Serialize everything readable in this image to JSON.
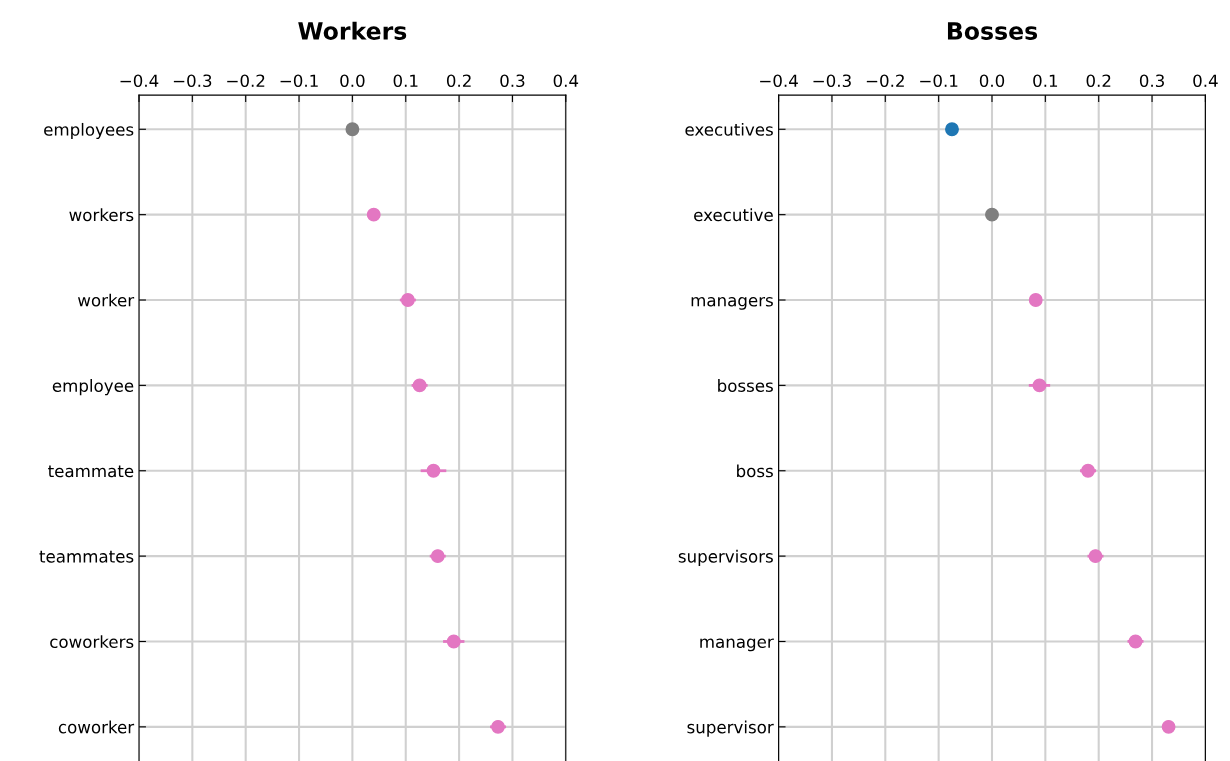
{
  "chart_data": [
    {
      "type": "scatter",
      "title": "Workers",
      "orientation": "horizontal",
      "categories": [
        "employees",
        "workers",
        "worker",
        "employee",
        "teammate",
        "teammates",
        "coworkers",
        "coworker"
      ],
      "values": [
        0.0,
        0.04,
        0.104,
        0.126,
        0.152,
        0.16,
        0.19,
        0.273
      ],
      "errors": [
        0.005,
        0.008,
        0.015,
        0.015,
        0.024,
        0.015,
        0.02,
        0.015
      ],
      "colors": [
        "#7f7f7f",
        "#e377c2",
        "#e377c2",
        "#e377c2",
        "#e377c2",
        "#e377c2",
        "#e377c2",
        "#e377c2"
      ],
      "xlim": [
        -0.4,
        0.4
      ],
      "xticks": [
        {
          "value": -0.4,
          "label": "−0.4"
        },
        {
          "value": -0.3,
          "label": "−0.3"
        },
        {
          "value": -0.2,
          "label": "−0.2"
        },
        {
          "value": -0.1,
          "label": "−0.1"
        },
        {
          "value": 0,
          "label": "0.0"
        },
        0.1,
        0.2,
        0.3,
        0.4
      ],
      "grid": true,
      "marker": "circle"
    },
    {
      "type": "scatter",
      "title": "Bosses",
      "orientation": "horizontal",
      "categories": [
        "executives",
        "executive",
        "managers",
        "bosses",
        "boss",
        "supervisors",
        "manager",
        "supervisor"
      ],
      "values": [
        -0.075,
        0.0,
        0.082,
        0.089,
        0.18,
        0.194,
        0.269,
        0.331
      ],
      "errors": [
        0.01,
        0.01,
        0.005,
        0.02,
        0.015,
        0.015,
        0.015,
        0.012
      ],
      "colors": [
        "#1f77b4",
        "#7f7f7f",
        "#e377c2",
        "#e377c2",
        "#e377c2",
        "#e377c2",
        "#e377c2",
        "#e377c2"
      ],
      "xlim": [
        -0.4,
        0.4
      ],
      "xticks": [
        {
          "value": -0.4,
          "label": "−0.4"
        },
        {
          "value": -0.3,
          "label": "−0.3"
        },
        {
          "value": -0.2,
          "label": "−0.2"
        },
        {
          "value": -0.1,
          "label": "−0.1"
        },
        {
          "value": 0,
          "label": "0.0"
        },
        0.1,
        0.2,
        0.3,
        0.4
      ],
      "grid": true,
      "marker": "circle"
    }
  ]
}
